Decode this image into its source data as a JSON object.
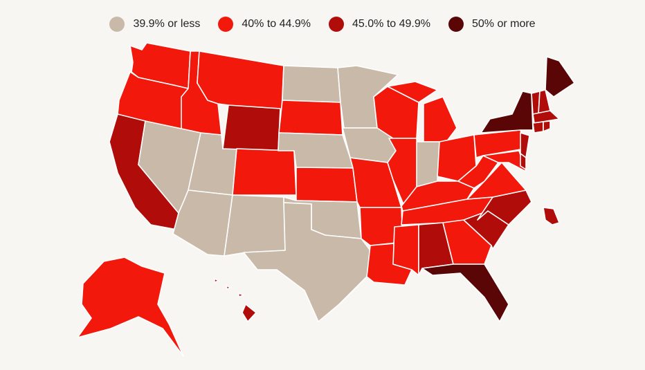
{
  "legend": [
    {
      "label": "39.9% or less",
      "color": "#c9b9a8"
    },
    {
      "label": "40% to 44.9%",
      "color": "#f2180b"
    },
    {
      "label": "45.0% to 49.9%",
      "color": "#b00d0a"
    },
    {
      "label": "50% or more",
      "color": "#5a0606"
    }
  ],
  "states": {
    "WA": 1,
    "OR": 1,
    "CA": 2,
    "ID": 1,
    "NV": 0,
    "UT": 0,
    "AZ": 0,
    "MT": 1,
    "WY": 2,
    "CO": 1,
    "NM": 0,
    "ND": 0,
    "SD": 1,
    "NE": 0,
    "KS": 1,
    "OK": 0,
    "TX": 0,
    "MN": 0,
    "IA": 0,
    "MO": 1,
    "AR": 1,
    "LA": 1,
    "WI": 1,
    "IL": 1,
    "MS": 1,
    "MI": 1,
    "IN": 0,
    "OH": 1,
    "KY": 1,
    "TN": 1,
    "AL": 2,
    "GA": 1,
    "FL": 3,
    "SC": 2,
    "NC": 2,
    "VA": 1,
    "WV": 1,
    "PA": 1,
    "NY": 3,
    "ME": 3,
    "NJ": 2,
    "MD": 1,
    "DE": 2,
    "DC": 2,
    "VT": 2,
    "NH": 2,
    "MA": 2,
    "CT": 2,
    "RI": 2,
    "AK": 1,
    "HI": 2
  }
}
